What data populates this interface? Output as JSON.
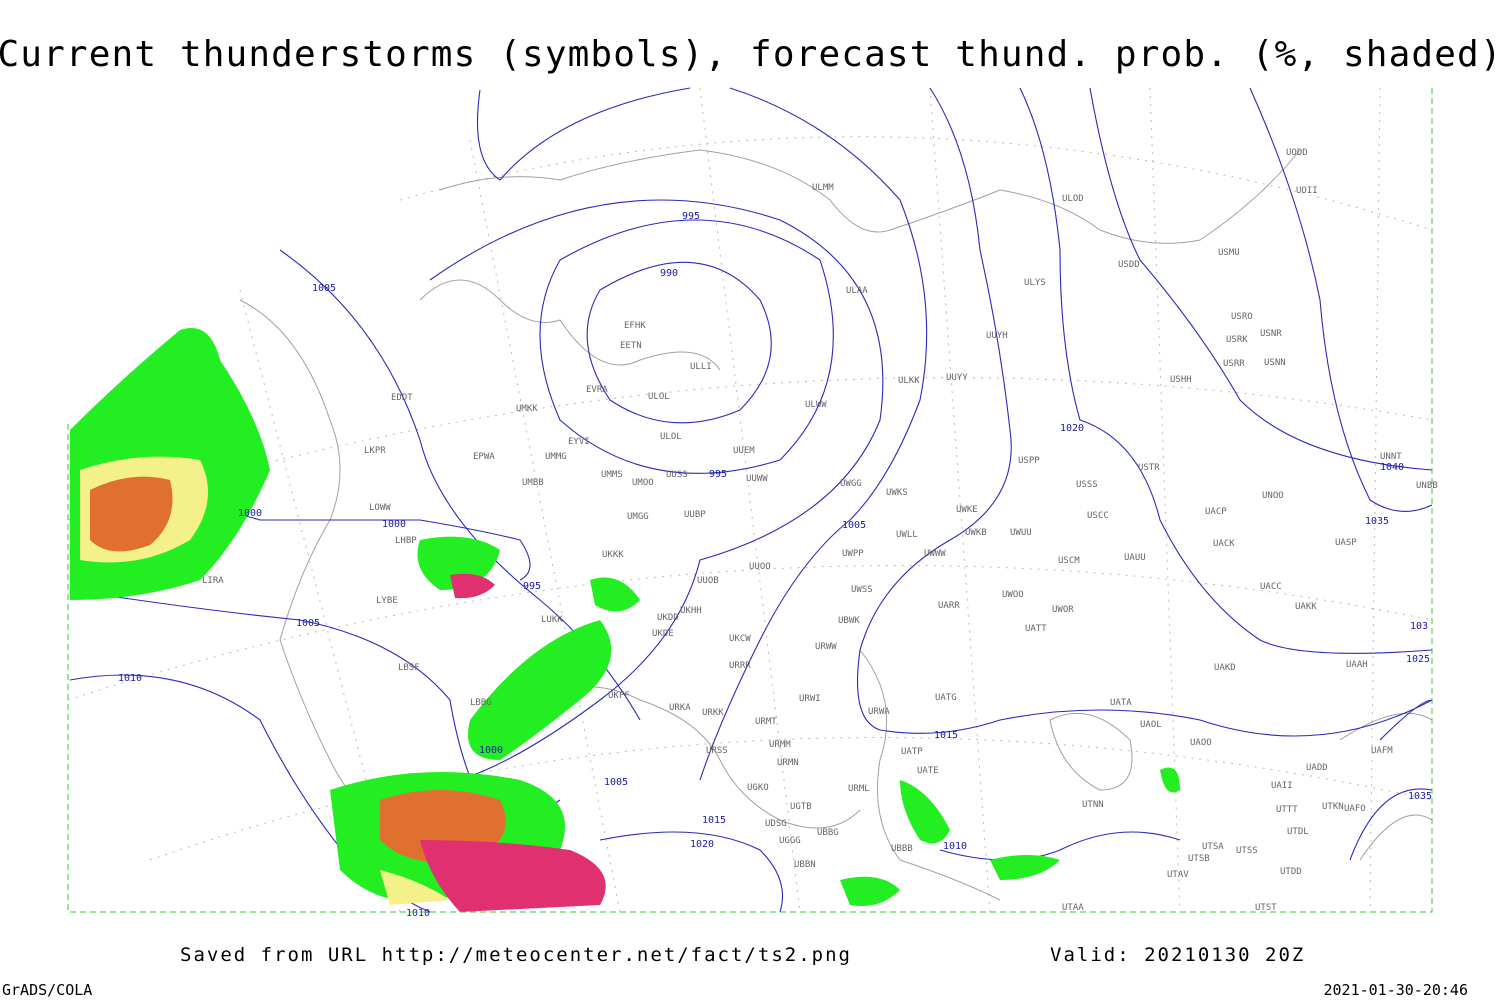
{
  "title": "Current thunderstorms (symbols), forecast thund. prob. (%, shaded)",
  "footer": {
    "source": "Saved from URL http://meteocenter.net/fact/ts2.png",
    "valid": "Valid: 20210130 20Z",
    "software": "GrADS/COLA",
    "timestamp": "2021-01-30-20:46"
  },
  "isobar_labels": [
    "995",
    "990",
    "1005",
    "995",
    "1000",
    "1000",
    "995",
    "1005",
    "1010",
    "1005",
    "1020",
    "1040",
    "1035",
    "103",
    "1025",
    "1015",
    "1000",
    "1005",
    "1015",
    "1020",
    "1010",
    "1035",
    "1010"
  ],
  "stations": [
    "ULMM",
    "ULOD",
    "UODD",
    "UOII",
    "USMU",
    "USDD",
    "ULAA",
    "ULYS",
    "USRO",
    "USNR",
    "USRK",
    "USRR",
    "USNN",
    "UUYH",
    "USHH",
    "EFHK",
    "EETN",
    "ULLI",
    "ULKK",
    "UUYY",
    "EVRA",
    "ULOL",
    "EDDT",
    "UMKK",
    "ULWW",
    "UUEM",
    "EYVI",
    "ULOL",
    "LKPR",
    "EPWA",
    "UMMG",
    "USPP",
    "USTR",
    "UNNT",
    "UMMS",
    "UMOO",
    "UUSS",
    "UUWW",
    "USSS",
    "UNBB",
    "UWGG",
    "UWKS",
    "UNOO",
    "UMBB",
    "LOWW",
    "UWKE",
    "UACP",
    "USCC",
    "UMGG",
    "UUBP",
    "UWKB",
    "UWUU",
    "UWLL",
    "UACK",
    "UASP",
    "LHBP",
    "UKKK",
    "UWPP",
    "UWWW",
    "USCM",
    "UAUU",
    "UUOO",
    "UUOB",
    "UACC",
    "UWSS",
    "LYBE",
    "UKHH",
    "UWOO",
    "UWOR",
    "UARR",
    "UAKK",
    "UKDD",
    "LUKK",
    "UKDE",
    "UBWK",
    "UATT",
    "UKCW",
    "URWW",
    "LBSF",
    "URRR",
    "UAKD",
    "UAAH",
    "UKFF",
    "URWI",
    "UATG",
    "UATA",
    "LBBG",
    "URKA",
    "URKK",
    "URMT",
    "URWA",
    "UAOL",
    "URMM",
    "UAOO",
    "URSS",
    "UATP",
    "UAFM",
    "URMN",
    "UADD",
    "UATE",
    "UGKO",
    "UAII",
    "URML",
    "UTNN",
    "UGTB",
    "UTKN",
    "UAFO",
    "UTTT",
    "UDSG",
    "UTDL",
    "UGGG",
    "UBBG",
    "UBBB",
    "UTSA",
    "UTSS",
    "UTSB",
    "UBBN",
    "UTAV",
    "UTDD",
    "UTAA",
    "UTST",
    "LIRA"
  ]
}
